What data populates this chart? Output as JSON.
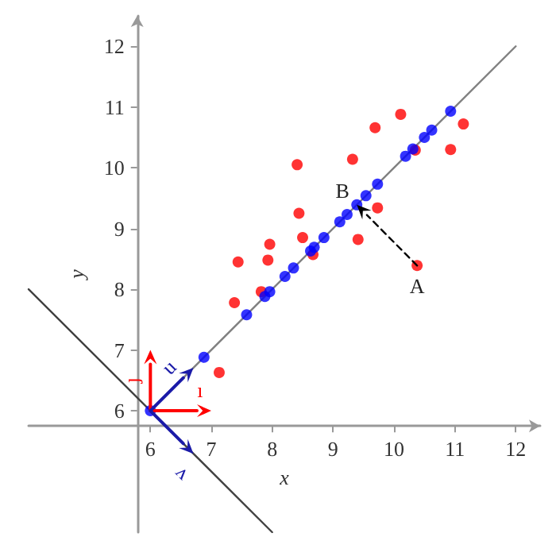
{
  "chart_data": {
    "type": "scatter",
    "xlabel": "x",
    "ylabel": "y",
    "xlim": [
      4,
      12.4
    ],
    "ylim": [
      4,
      12.5
    ],
    "xticks": [
      6,
      7,
      8,
      9,
      10,
      11,
      12
    ],
    "yticks": [
      6,
      7,
      8,
      9,
      10,
      11,
      12
    ],
    "grid": false,
    "series": [
      {
        "type": "line",
        "color": "#808080",
        "marker": "none",
        "line_style": "solid",
        "x": [
          6,
          12
        ],
        "values": [
          6,
          12
        ]
      },
      {
        "type": "line",
        "color": "#404040",
        "marker": "none",
        "line_style": "solid",
        "x": [
          4,
          8
        ],
        "values": [
          8,
          4
        ]
      },
      {
        "color": "#ff0000",
        "marker": "circle",
        "x": [
          7.44,
          7.93,
          7.96,
          8.41,
          8.44,
          8.5,
          8.67,
          9.32,
          9.41,
          9.69,
          9.73,
          10.11,
          10.35,
          10.38,
          10.93,
          11.14,
          7.38,
          7.82,
          7.13
        ],
        "values": [
          8.45,
          8.48,
          8.74,
          10.05,
          9.25,
          8.85,
          8.57,
          10.14,
          8.82,
          10.66,
          9.34,
          10.88,
          10.29,
          8.39,
          10.3,
          10.72,
          7.78,
          7.96,
          6.63
        ]
      },
      {
        "color": "#0000ff",
        "marker": "circle",
        "x": [
          6,
          6.88,
          7.58,
          7.88,
          7.96,
          8.21,
          8.35,
          8.63,
          8.69,
          8.85,
          9.11,
          9.23,
          9.39,
          9.54,
          9.73,
          10.19,
          10.31,
          10.5,
          10.62,
          10.93
        ],
        "values": [
          6,
          6.88,
          7.58,
          7.88,
          7.96,
          8.21,
          8.35,
          8.63,
          8.69,
          8.85,
          9.11,
          9.23,
          9.39,
          9.54,
          9.73,
          10.19,
          10.31,
          10.5,
          10.62,
          10.93
        ]
      }
    ],
    "annotations": [
      {
        "text": "A",
        "x": 10.38,
        "y": 8.39
      },
      {
        "text": "B",
        "x": 9.39,
        "y": 9.39
      },
      "ı⃗",
      "ȷ⃗",
      "u⃗",
      "v⃗"
    ]
  }
}
